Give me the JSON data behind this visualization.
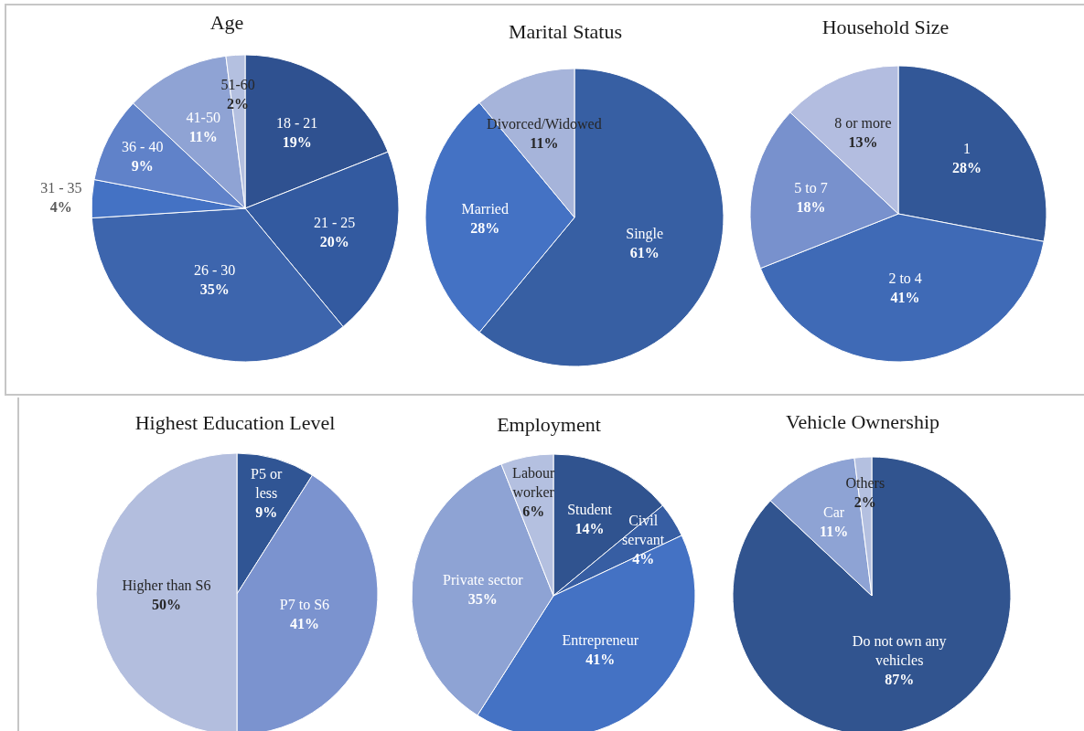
{
  "chart_data": [
    {
      "type": "pie",
      "title": "Age",
      "categories": [
        "18 - 21",
        "21 - 25",
        "26 - 30",
        "31 - 35",
        "36 - 40",
        "41-50",
        "51-60"
      ],
      "values": [
        19,
        20,
        35,
        4,
        9,
        11,
        2
      ],
      "value_labels": [
        "19%",
        "20%",
        "35%",
        "4%",
        "9%",
        "11%",
        "2%"
      ],
      "colors": [
        "#2f5190",
        "#335aa0",
        "#3d65ad",
        "#4472c4",
        "#6082c9",
        "#8fa3d4",
        "#b4c0e0"
      ]
    },
    {
      "type": "pie",
      "title": "Marital Status",
      "categories": [
        "Single",
        "Married",
        "Divorced/Widowed"
      ],
      "values": [
        61,
        28,
        11
      ],
      "value_labels": [
        "61%",
        "28%",
        "11%"
      ],
      "colors": [
        "#375fa3",
        "#4472c4",
        "#a6b4da"
      ]
    },
    {
      "type": "pie",
      "title": "Household Size",
      "categories": [
        "1",
        "2 to 4",
        "5 to 7",
        "8 or more"
      ],
      "values": [
        28,
        41,
        18,
        13
      ],
      "value_labels": [
        "28%",
        "41%",
        "18%",
        "13%"
      ],
      "colors": [
        "#325797",
        "#3f6ab6",
        "#7891cd",
        "#b3bde0"
      ]
    },
    {
      "type": "pie",
      "title": "Highest Education Level",
      "categories": [
        "P5 or less",
        "P7 to S6",
        "Higher than S6"
      ],
      "values": [
        9,
        41,
        50
      ],
      "value_labels": [
        "9%",
        "41%",
        "50%"
      ],
      "colors": [
        "#305594",
        "#7b93cf",
        "#b3bede"
      ]
    },
    {
      "type": "pie",
      "title": "Employment",
      "categories": [
        "Student",
        "Civil servant",
        "Entrepreneur",
        "Private sector",
        "Labour worker"
      ],
      "values": [
        14,
        4,
        41,
        35,
        6
      ],
      "value_labels": [
        "14%",
        "4%",
        "41%",
        "35%",
        "6%"
      ],
      "colors": [
        "#30538f",
        "#375ea3",
        "#4472c4",
        "#8ea3d4",
        "#b4c0e0"
      ]
    },
    {
      "type": "pie",
      "title": "Vehicle Ownership",
      "categories": [
        "Do not own any vehicles",
        "Car",
        "Others"
      ],
      "values": [
        87,
        11,
        2
      ],
      "value_labels": [
        "87%",
        "11%",
        "2%"
      ],
      "colors": [
        "#31548f",
        "#8ea3d4",
        "#b4c0e0"
      ]
    }
  ]
}
